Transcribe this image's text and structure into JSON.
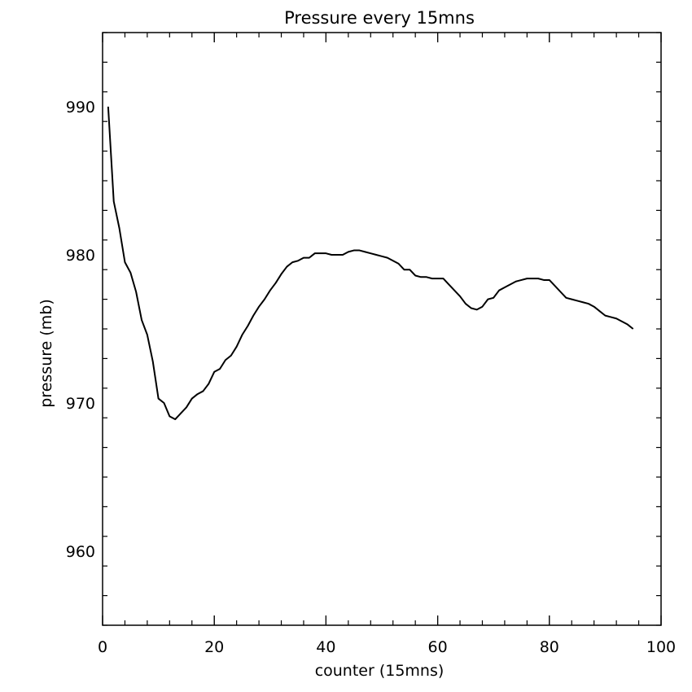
{
  "chart_data": {
    "type": "line",
    "title": "Pressure every 15mns",
    "xlabel": "counter (15mns)",
    "ylabel": "pressure (mb)",
    "xlim": [
      0,
      100
    ],
    "ylim": [
      955,
      995
    ],
    "xticks": [
      0,
      20,
      40,
      60,
      80,
      100
    ],
    "yticks": [
      960,
      970,
      980,
      990
    ],
    "grid": false,
    "line_color": "#000000",
    "series": [
      {
        "x": [
          1,
          2,
          3,
          4,
          5,
          6,
          7,
          8,
          9,
          10,
          11,
          12,
          13,
          14,
          15,
          16,
          17,
          18,
          19,
          20,
          21,
          22,
          23,
          24,
          25,
          26,
          27,
          28,
          29,
          30,
          31,
          32,
          33,
          34,
          35,
          36,
          37,
          38,
          39,
          40,
          41,
          42,
          43,
          44,
          45,
          46,
          47,
          48,
          49,
          50,
          51,
          52,
          53,
          54,
          55,
          56,
          57,
          58,
          59,
          60,
          61,
          62,
          63,
          64,
          65,
          66,
          67,
          68,
          69,
          70,
          71,
          72,
          73,
          74,
          75,
          76,
          77,
          78,
          79,
          80,
          81,
          82,
          83,
          84,
          85,
          86,
          87,
          88,
          89,
          90,
          91,
          92,
          93,
          94,
          95
        ],
        "y": [
          990.0,
          983.6,
          981.8,
          979.5,
          978.8,
          977.5,
          975.6,
          974.6,
          972.8,
          970.3,
          970.0,
          969.1,
          968.9,
          969.3,
          969.7,
          970.3,
          970.6,
          970.8,
          971.3,
          972.1,
          972.3,
          972.9,
          973.2,
          973.8,
          974.6,
          975.2,
          975.9,
          976.5,
          977.0,
          977.6,
          978.1,
          978.7,
          979.2,
          979.5,
          979.6,
          979.8,
          979.8,
          980.1,
          980.1,
          980.1,
          980.0,
          980.0,
          980.0,
          980.2,
          980.3,
          980.3,
          980.2,
          980.1,
          980.0,
          979.9,
          979.8,
          979.6,
          979.4,
          979.0,
          979.0,
          978.6,
          978.5,
          978.5,
          978.4,
          978.4,
          978.4,
          978.0,
          977.6,
          977.2,
          976.7,
          976.4,
          976.3,
          976.5,
          977.0,
          977.1,
          977.6,
          977.8,
          978.0,
          978.2,
          978.3,
          978.4,
          978.4,
          978.4,
          978.3,
          978.3,
          977.9,
          977.5,
          977.1,
          977.0,
          976.9,
          976.8,
          976.7,
          976.5,
          976.2,
          975.9,
          975.8,
          975.7,
          975.5,
          975.3,
          975.0
        ]
      }
    ]
  }
}
